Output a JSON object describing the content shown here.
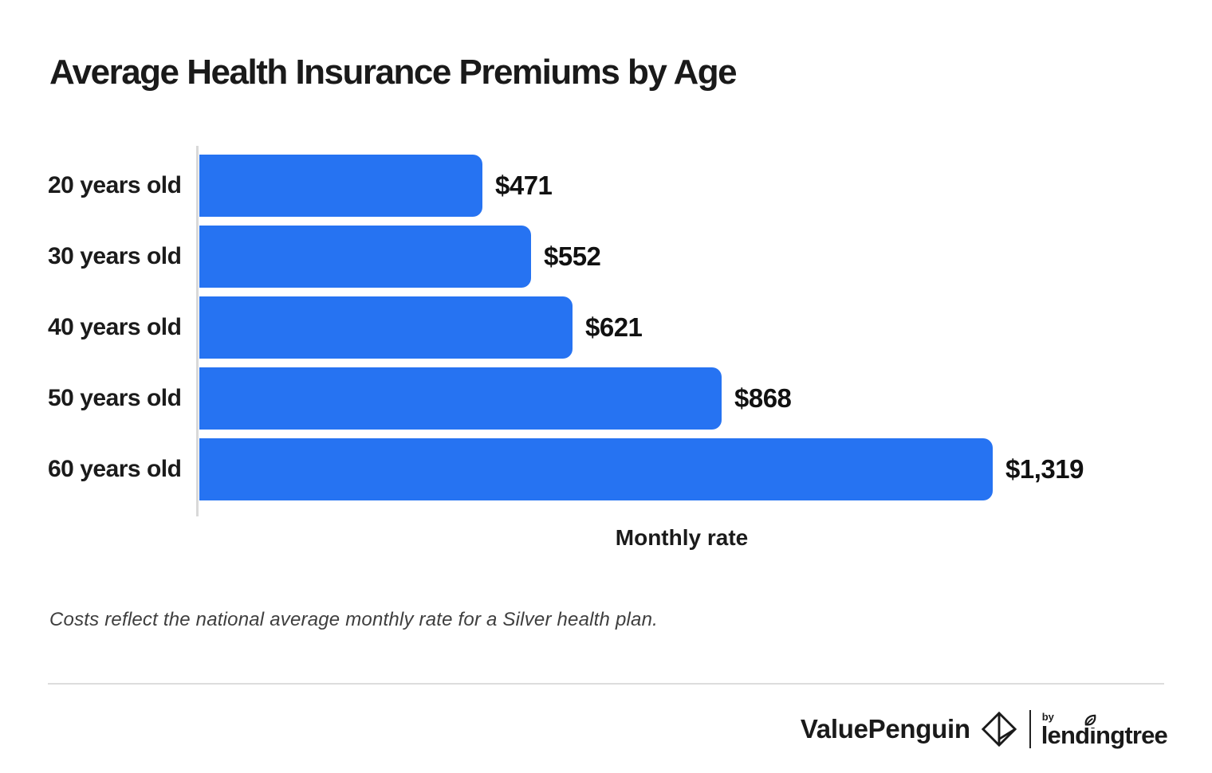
{
  "chart_data": {
    "type": "bar",
    "orientation": "horizontal",
    "title": "Average Health Insurance Premiums by Age",
    "categories": [
      "20 years old",
      "30 years old",
      "40 years old",
      "50 years old",
      "60 years old"
    ],
    "values": [
      471,
      552,
      621,
      868,
      1319
    ],
    "value_labels": [
      "$471",
      "$552",
      "$621",
      "$868",
      "$1,319"
    ],
    "xlabel": "Monthly rate",
    "ylabel": "",
    "xlim": [
      0,
      1319
    ],
    "grid": false,
    "legend": "none",
    "bar_color": "#2673F2"
  },
  "footnote": "Costs reflect the national average monthly rate for a Silver health plan.",
  "branding": {
    "valuepenguin_label": "ValuePenguin",
    "by_label": "by",
    "lendingtree_label": "lendingtree"
  },
  "colors": {
    "bar": "#2673F2",
    "title_text": "#1a1a1a",
    "axis_line": "#d9d9d9",
    "divider": "#dddddd",
    "footnote_text": "#3e3e3e"
  }
}
